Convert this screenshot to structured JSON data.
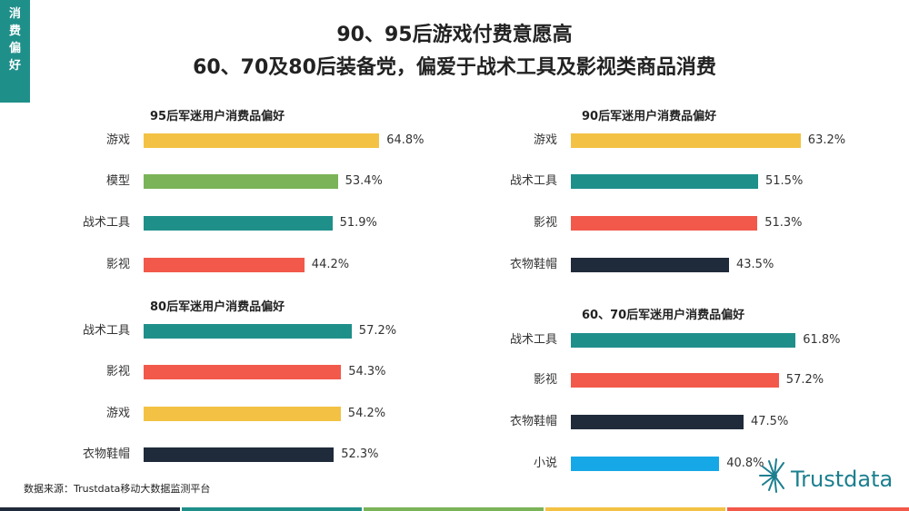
{
  "side_tab": "消费偏好",
  "title_line1": "90、95后游戏付费意愿高",
  "title_line2": "60、70及80后装备党，偏爱于战术工具及影视类商品消费",
  "source": "数据来源：Trustdata移动大数据监测平台",
  "logo_text": "Trustdata",
  "colors": {
    "yellow": "#f3c244",
    "green": "#7bb358",
    "teal": "#1f8f8a",
    "red": "#f2594b",
    "navy": "#1f2b3a",
    "sky": "#16a8e6",
    "side_tab": "#1f8f8a"
  },
  "chart_data": [
    {
      "type": "bar",
      "orientation": "horizontal",
      "title": "95后军迷用户消费品偏好",
      "categories": [
        "游戏",
        "模型",
        "战术工具",
        "影视"
      ],
      "values": [
        64.8,
        53.4,
        51.9,
        44.2
      ],
      "labels": [
        "64.8%",
        "53.4%",
        "51.9%",
        "44.2%"
      ],
      "colors": [
        "#f3c244",
        "#7bb358",
        "#1f8f8a",
        "#f2594b"
      ]
    },
    {
      "type": "bar",
      "orientation": "horizontal",
      "title": "90后军迷用户消费品偏好",
      "categories": [
        "游戏",
        "战术工具",
        "影视",
        "衣物鞋帽"
      ],
      "values": [
        63.2,
        51.5,
        51.3,
        43.5
      ],
      "labels": [
        "63.2%",
        "51.5%",
        "51.3%",
        "43.5%"
      ],
      "colors": [
        "#f3c244",
        "#1f8f8a",
        "#f2594b",
        "#1f2b3a"
      ]
    },
    {
      "type": "bar",
      "orientation": "horizontal",
      "title": "80后军迷用户消费品偏好",
      "categories": [
        "战术工具",
        "影视",
        "游戏",
        "衣物鞋帽"
      ],
      "values": [
        57.2,
        54.3,
        54.2,
        52.3
      ],
      "labels": [
        "57.2%",
        "54.3%",
        "54.2%",
        "52.3%"
      ],
      "colors": [
        "#1f8f8a",
        "#f2594b",
        "#f3c244",
        "#1f2b3a"
      ]
    },
    {
      "type": "bar",
      "orientation": "horizontal",
      "title": "60、70后军迷用户消费品偏好",
      "categories": [
        "战术工具",
        "影视",
        "衣物鞋帽",
        "小说"
      ],
      "values": [
        61.8,
        57.2,
        47.5,
        40.8
      ],
      "labels": [
        "61.8%",
        "57.2%",
        "47.5%",
        "40.8%"
      ],
      "colors": [
        "#1f8f8a",
        "#f2594b",
        "#1f2b3a",
        "#16a8e6"
      ]
    }
  ]
}
